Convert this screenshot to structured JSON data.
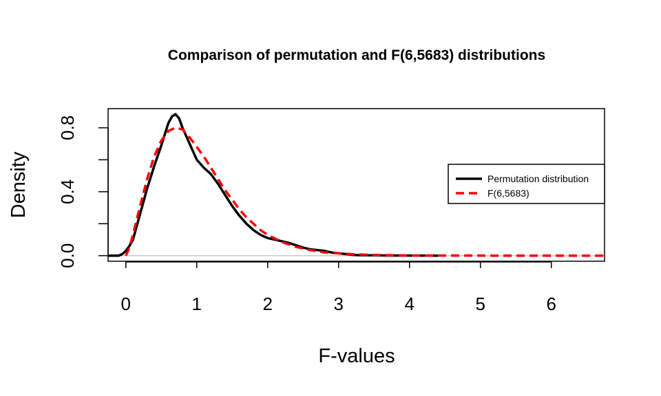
{
  "chart_data": {
    "type": "line",
    "title": "Comparison of permutation and F(6,5683) distributions",
    "xlabel": "F-values",
    "ylabel": "Density",
    "xlim": [
      -0.25,
      6.75
    ],
    "ylim": [
      -0.035,
      0.92
    ],
    "x_ticks": [
      0,
      1,
      2,
      3,
      4,
      5,
      6
    ],
    "y_ticks": [
      0.0,
      0.2,
      0.4,
      0.6,
      0.8
    ],
    "y_tick_labels": [
      "0.0",
      "",
      "0.4",
      "",
      "0.8"
    ],
    "reference_line": {
      "y": 0,
      "color": "#bebebe"
    },
    "legend": {
      "placement": "right",
      "entries": [
        "Permutation distribution",
        "F(6,5683)"
      ]
    },
    "grid": false,
    "series": [
      {
        "name": "Permutation distribution",
        "color": "#000000",
        "style": "solid",
        "x": [
          -0.25,
          -0.1,
          -0.05,
          0.0,
          0.05,
          0.1,
          0.2,
          0.3,
          0.4,
          0.5,
          0.55,
          0.6,
          0.65,
          0.7,
          0.75,
          0.8,
          0.9,
          1.0,
          1.1,
          1.2,
          1.3,
          1.4,
          1.5,
          1.6,
          1.7,
          1.8,
          1.9,
          2.0,
          2.1,
          2.2,
          2.3,
          2.4,
          2.5,
          2.6,
          2.7,
          2.8,
          2.9,
          3.0,
          3.1,
          3.2,
          3.3,
          3.5,
          3.7,
          4.0,
          4.2,
          4.4
        ],
        "y": [
          0.0,
          0.0,
          0.01,
          0.03,
          0.06,
          0.1,
          0.26,
          0.42,
          0.56,
          0.69,
          0.76,
          0.83,
          0.87,
          0.885,
          0.86,
          0.8,
          0.7,
          0.6,
          0.55,
          0.51,
          0.45,
          0.38,
          0.31,
          0.25,
          0.2,
          0.16,
          0.13,
          0.11,
          0.1,
          0.09,
          0.08,
          0.065,
          0.05,
          0.04,
          0.035,
          0.03,
          0.02,
          0.015,
          0.01,
          0.005,
          0.003,
          0.002,
          0.001,
          0.0005,
          0.0002,
          0.0
        ]
      },
      {
        "name": "F(6,5683)",
        "color": "#ff0000",
        "style": "dashed",
        "x": [
          0.0,
          0.05,
          0.1,
          0.15,
          0.2,
          0.3,
          0.4,
          0.5,
          0.6,
          0.7,
          0.8,
          0.9,
          1.0,
          1.1,
          1.2,
          1.3,
          1.4,
          1.5,
          1.6,
          1.7,
          1.8,
          1.9,
          2.0,
          2.2,
          2.4,
          2.6,
          2.8,
          3.0,
          3.2,
          3.5,
          4.0,
          4.5,
          5.0,
          5.5,
          6.0,
          6.5,
          6.75
        ],
        "y": [
          0.0,
          0.05,
          0.13,
          0.22,
          0.31,
          0.48,
          0.62,
          0.72,
          0.78,
          0.8,
          0.79,
          0.74,
          0.68,
          0.62,
          0.55,
          0.48,
          0.41,
          0.35,
          0.29,
          0.24,
          0.2,
          0.16,
          0.13,
          0.085,
          0.055,
          0.035,
          0.02,
          0.015,
          0.009,
          0.004,
          0.0012,
          0.0004,
          0.0001,
          0.0,
          0.0,
          0.0,
          0.0
        ]
      }
    ]
  }
}
